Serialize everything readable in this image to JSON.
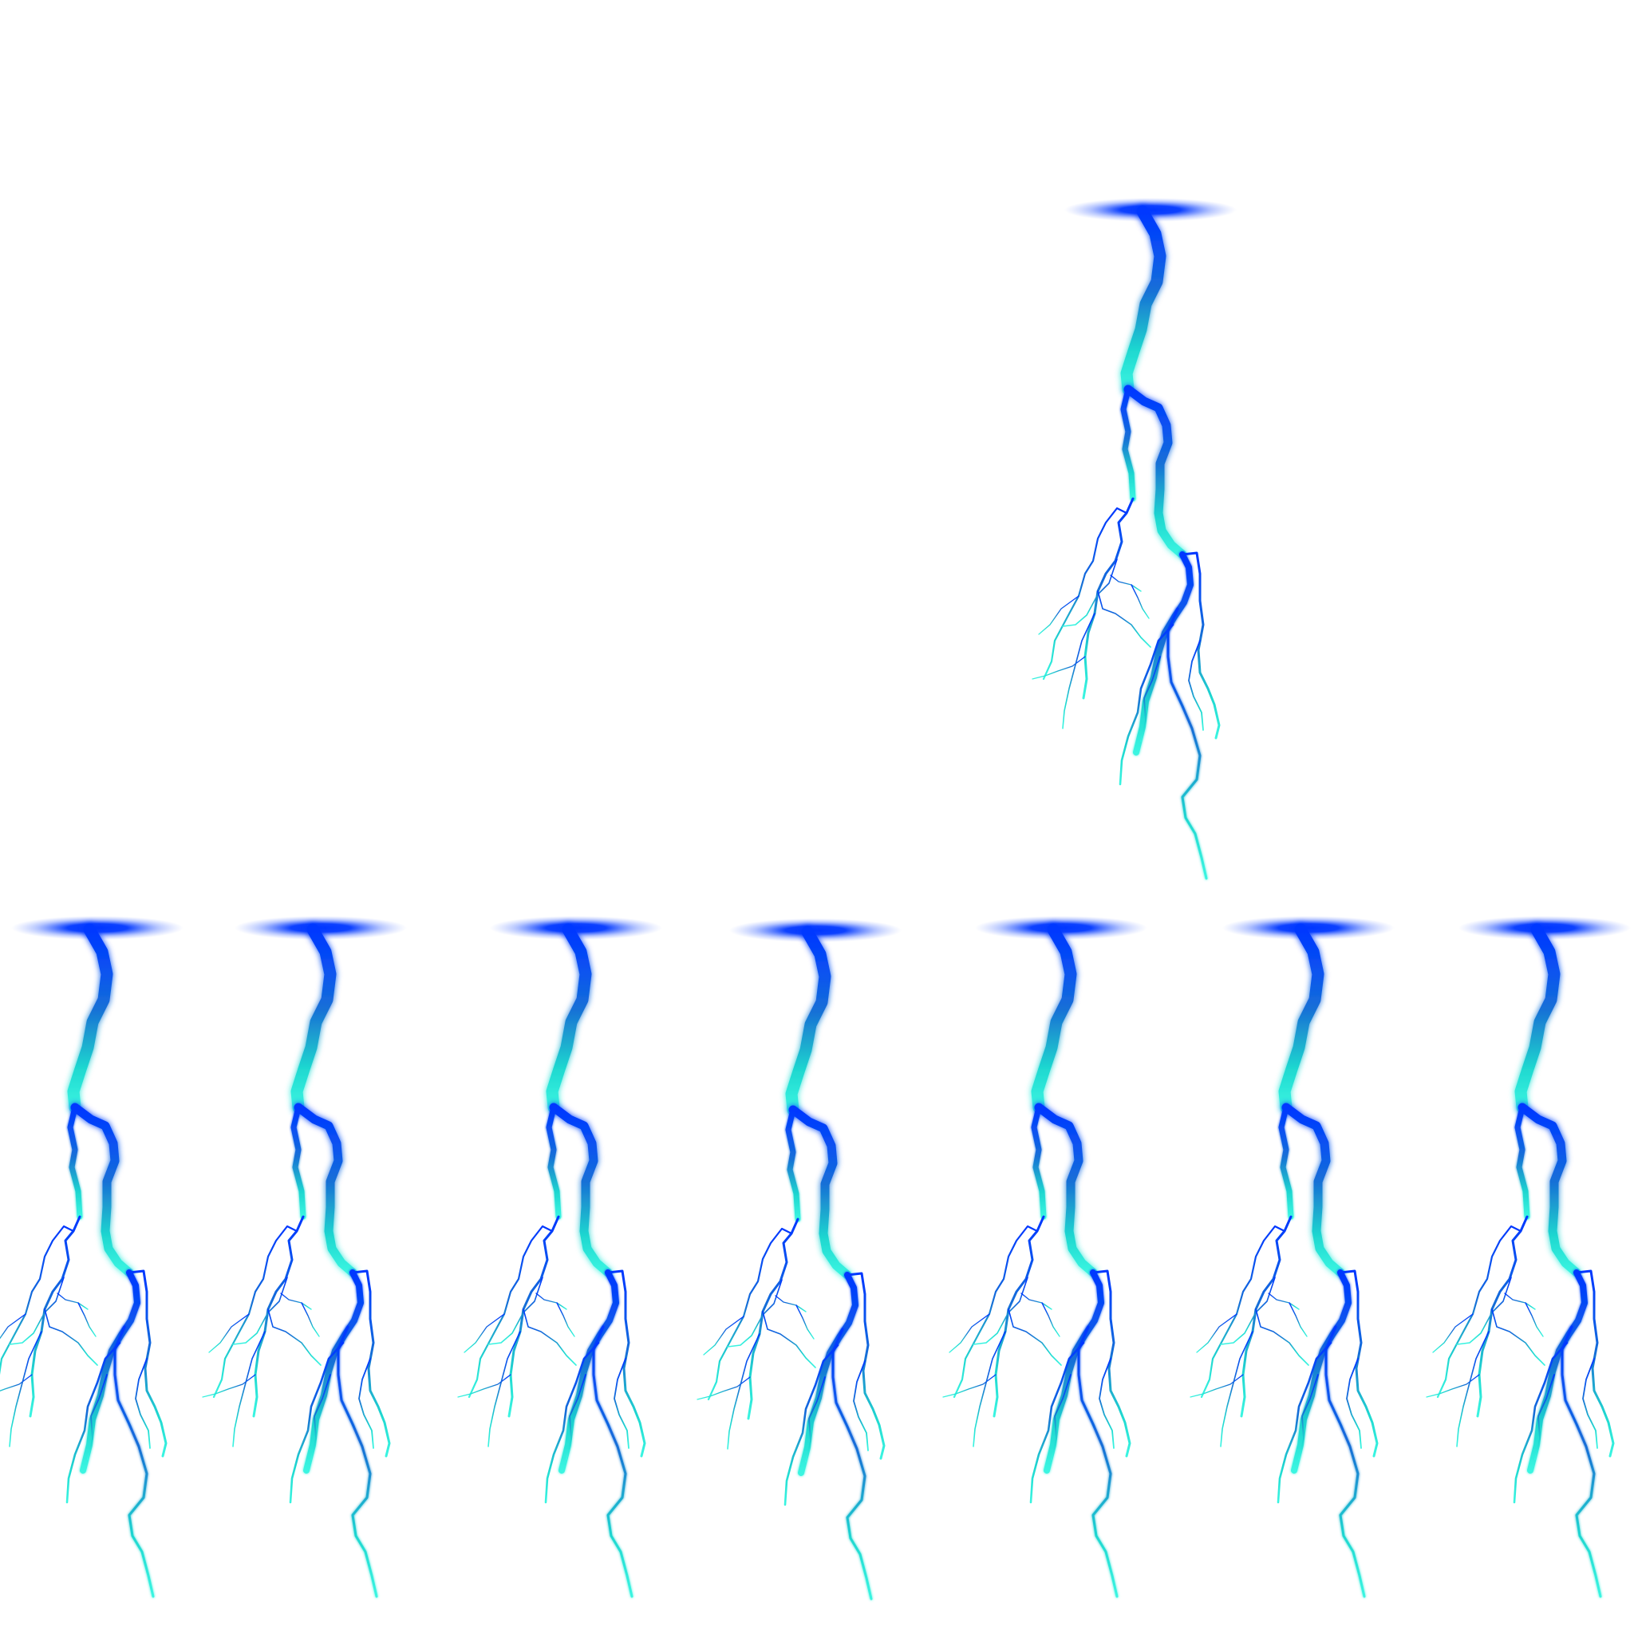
{
  "sprite_sheet": {
    "background": "#ffffff",
    "rows": [
      {
        "frames": 1,
        "align": "right"
      },
      {
        "frames": 7,
        "align": "left"
      }
    ],
    "colors": {
      "cloud": "#0037ff",
      "trunk_top": "#0037ff",
      "trunk_mid": "#1670d6",
      "branch_low": "#1fd8d0",
      "tip": "#3af5e1"
    },
    "frames": [
      {
        "name": "lightning-bolt-frame"
      },
      {
        "name": "lightning-bolt-frame"
      },
      {
        "name": "lightning-bolt-frame"
      },
      {
        "name": "lightning-bolt-frame"
      },
      {
        "name": "lightning-bolt-frame"
      },
      {
        "name": "lightning-bolt-frame"
      },
      {
        "name": "lightning-bolt-frame"
      },
      {
        "name": "lightning-bolt-frame"
      }
    ]
  }
}
